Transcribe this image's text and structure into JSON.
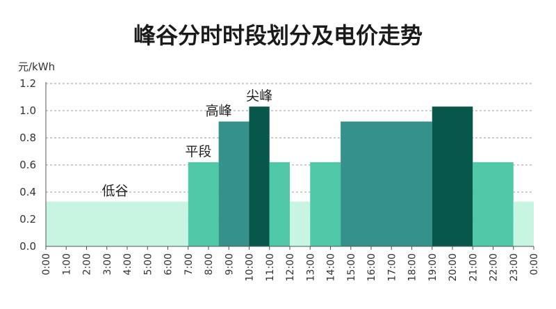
{
  "chart_data": {
    "type": "bar",
    "title": "峰谷分时时段划分及电价走势",
    "ylabel": "元/kWh",
    "xlabel": "",
    "ylim": [
      0,
      1.2
    ],
    "yticks": [
      "0.0",
      "0.2",
      "0.4",
      "0.6",
      "0.8",
      "1.0",
      "1.2"
    ],
    "grid": true,
    "categories": [
      "0:00",
      "1:00",
      "2:00",
      "3:00",
      "4:00",
      "5:00",
      "6:00",
      "7:00",
      "8:00",
      "9:00",
      "10:00",
      "11:00",
      "12:00",
      "13:00",
      "14:00",
      "15:00",
      "16:00",
      "17:00",
      "18:00",
      "19:00",
      "20:00",
      "21:00",
      "22:00",
      "23:00",
      "0:00"
    ],
    "levels": [
      {
        "name": "低谷",
        "value": 0.33,
        "color": "#c8f5e1"
      },
      {
        "name": "平段",
        "value": 0.62,
        "color": "#4fc8a8"
      },
      {
        "name": "高峰",
        "value": 0.92,
        "color": "#35928a"
      },
      {
        "name": "尖峰",
        "value": 1.03,
        "color": "#07574a"
      }
    ],
    "segments": [
      {
        "start": 0,
        "end": 7,
        "level": "低谷"
      },
      {
        "start": 7,
        "end": 8.5,
        "level": "平段"
      },
      {
        "start": 8.5,
        "end": 10,
        "level": "高峰"
      },
      {
        "start": 10,
        "end": 11,
        "level": "尖峰"
      },
      {
        "start": 11,
        "end": 12,
        "level": "平段"
      },
      {
        "start": 12,
        "end": 13,
        "level": "低谷"
      },
      {
        "start": 13,
        "end": 14.5,
        "level": "平段"
      },
      {
        "start": 14.5,
        "end": 19,
        "level": "高峰"
      },
      {
        "start": 19,
        "end": 21,
        "level": "尖峰"
      },
      {
        "start": 21,
        "end": 23,
        "level": "平段"
      },
      {
        "start": 23,
        "end": 24,
        "level": "低谷"
      }
    ],
    "annotations": [
      {
        "text": "低谷",
        "hour": 3.4,
        "level": "低谷"
      },
      {
        "text": "平段",
        "hour": 7.5,
        "level": "平段"
      },
      {
        "text": "高峰",
        "hour": 8.5,
        "level": "高峰"
      },
      {
        "text": "尖峰",
        "hour": 10.5,
        "level": "尖峰"
      }
    ]
  }
}
